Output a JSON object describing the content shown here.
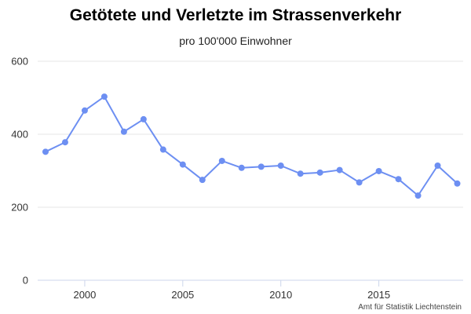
{
  "chart_data": {
    "type": "line",
    "title": "Getötete und Verletzte im Strassenverkehr",
    "subtitle": "pro 100'000 Einwohner",
    "credit": "Amt für Statistik Liechtenstein",
    "xlabel": "",
    "ylabel": "",
    "xlim": [
      1997.6,
      2019.3
    ],
    "ylim": [
      0,
      600
    ],
    "x_ticks": [
      2000,
      2005,
      2010,
      2015
    ],
    "y_ticks": [
      0,
      200,
      400,
      600
    ],
    "grid": "horizontal",
    "legend": "none",
    "series_color": "#6d8ff2",
    "x": [
      1998,
      1999,
      2000,
      2001,
      2002,
      2003,
      2004,
      2005,
      2006,
      2007,
      2008,
      2009,
      2010,
      2011,
      2012,
      2013,
      2014,
      2015,
      2016,
      2017,
      2018,
      2019
    ],
    "series": [
      {
        "values": [
          352,
          378,
          465,
          503,
          407,
          441,
          358,
          317,
          275,
          327,
          308,
          311,
          314,
          292,
          295,
          302,
          268,
          299,
          277,
          232,
          314,
          265
        ]
      }
    ]
  }
}
